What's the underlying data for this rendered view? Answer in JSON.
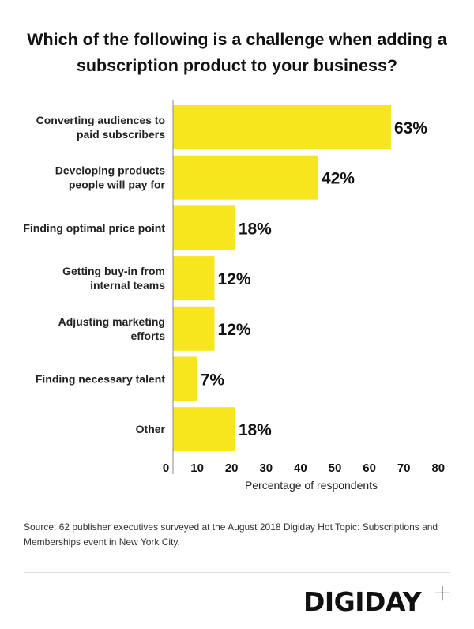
{
  "chart_data": {
    "type": "bar",
    "orientation": "horizontal",
    "title": "Which of the following is a challenge when adding a subscription product to your business?",
    "categories": [
      [
        "Converting audiences to",
        "paid subscribers"
      ],
      [
        "Developing products",
        "people will pay for"
      ],
      [
        "Finding optimal price point"
      ],
      [
        "Getting buy-in from",
        "internal teams"
      ],
      [
        "Adjusting marketing",
        "efforts"
      ],
      [
        "Finding necessary talent"
      ],
      [
        "Other"
      ]
    ],
    "values": [
      63,
      42,
      18,
      12,
      12,
      7,
      18
    ],
    "data_labels": [
      "63%",
      "42%",
      "18%",
      "12%",
      "12%",
      "7%",
      "18%"
    ],
    "xlabel": "Percentage of respondents",
    "xlim": [
      0,
      80
    ],
    "xticks": [
      0,
      10,
      20,
      30,
      40,
      50,
      60,
      70,
      80
    ],
    "grid": false,
    "bar_color": "#f7e61e"
  },
  "source": "Source: 62 publisher executives surveyed at the August 2018 Digiday Hot Topic: Subscriptions and Memberships event in New York City.",
  "brand": {
    "logo": "DIGIDAY",
    "plus": "+"
  }
}
